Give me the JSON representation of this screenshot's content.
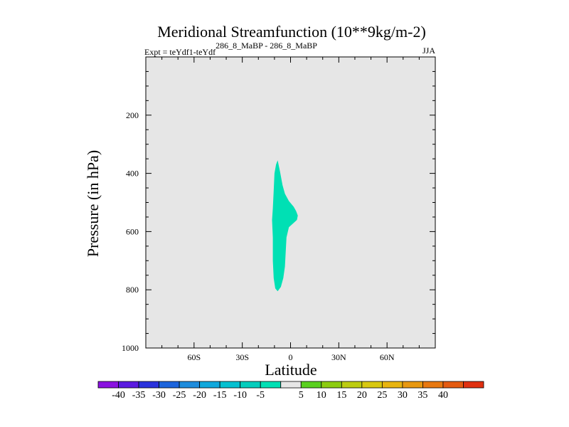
{
  "chart_data": {
    "type": "filled-contour",
    "title": "Meridional Streamfunction (10**9kg/m-2)",
    "subtitle_left_prefix": "Expt = teYdf1-teYdf",
    "subtitle_left_superscript": "286_8_MaBP - 286_8_MaBP",
    "subtitle_right": "JJA",
    "xlabel": "Latitude",
    "ylabel": "Pressure (in hPa)",
    "xlim": [
      -90,
      90
    ],
    "ylim": [
      0,
      1000
    ],
    "y_inverted": true,
    "x_ticks": [
      {
        "value": -60,
        "label": "60S"
      },
      {
        "value": -30,
        "label": "30S"
      },
      {
        "value": 0,
        "label": "0"
      },
      {
        "value": 30,
        "label": "30N"
      },
      {
        "value": 60,
        "label": "60N"
      }
    ],
    "y_ticks": [
      {
        "value": 200,
        "label": "200"
      },
      {
        "value": 400,
        "label": "400"
      },
      {
        "value": 600,
        "label": "600"
      },
      {
        "value": 800,
        "label": "800"
      },
      {
        "value": 1000,
        "label": "1000"
      }
    ],
    "background_fill": "#e6e6e6",
    "contour_regions": [
      {
        "level_range": [
          -10,
          -5
        ],
        "color": "#00e0b4",
        "outline": [
          [
            -8.0,
            355
          ],
          [
            -6.5,
            395
          ],
          [
            -5.0,
            440
          ],
          [
            -3.5,
            470
          ],
          [
            -1.0,
            495
          ],
          [
            2.0,
            515
          ],
          [
            3.5,
            530
          ],
          [
            4.5,
            545
          ],
          [
            4.0,
            560
          ],
          [
            2.0,
            570
          ],
          [
            -1.0,
            585
          ],
          [
            -2.5,
            620
          ],
          [
            -3.0,
            670
          ],
          [
            -3.5,
            720
          ],
          [
            -4.5,
            760
          ],
          [
            -6.0,
            790
          ],
          [
            -8.0,
            805
          ],
          [
            -9.5,
            795
          ],
          [
            -10.5,
            760
          ],
          [
            -11.0,
            700
          ],
          [
            -11.0,
            620
          ],
          [
            -11.5,
            560
          ],
          [
            -11.0,
            520
          ],
          [
            -10.5,
            460
          ],
          [
            -10.0,
            400
          ],
          [
            -9.0,
            370
          ]
        ]
      }
    ],
    "colorbar": {
      "colors": [
        "#8a12e0",
        "#5a1ae0",
        "#2a32dc",
        "#1c64dc",
        "#1e8cdc",
        "#10a8dc",
        "#04c0d0",
        "#04cdbc",
        "#00e0b4",
        "#e6e6e6",
        "#5ad020",
        "#8ccc10",
        "#bccc10",
        "#d8c810",
        "#e8b410",
        "#e89810",
        "#e87810",
        "#e45a10",
        "#e03010"
      ],
      "labels": [
        "-40",
        "-35",
        "-30",
        "-25",
        "-20",
        "-15",
        "-10",
        "-5",
        "5",
        "10",
        "15",
        "20",
        "25",
        "30",
        "35",
        "40"
      ]
    }
  }
}
